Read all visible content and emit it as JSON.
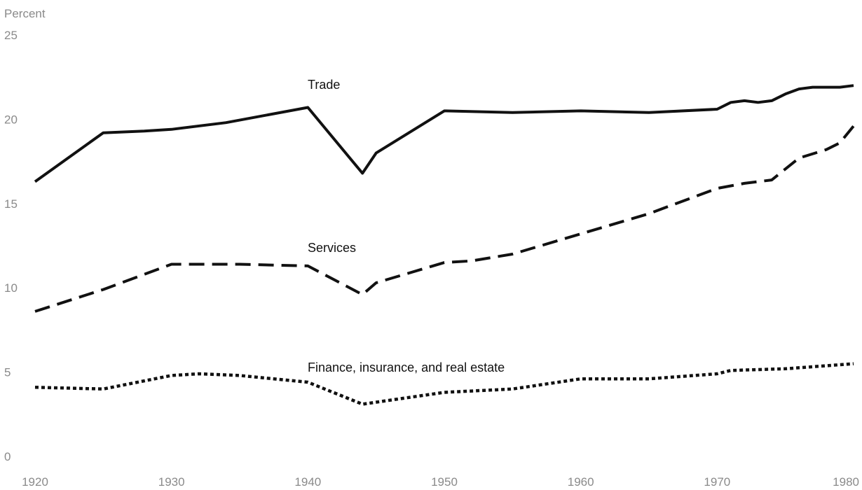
{
  "chart_data": {
    "type": "line",
    "title": "",
    "xlabel": "",
    "ylabel": "Percent",
    "xlim": [
      1920,
      1980
    ],
    "ylim": [
      0,
      25
    ],
    "x_ticks": [
      1920,
      1930,
      1940,
      1950,
      1960,
      1970,
      1980
    ],
    "x_tick_labels": [
      "1920",
      "1930",
      "1940",
      "1950",
      "1960",
      "1970",
      "1980"
    ],
    "y_ticks": [
      0,
      5,
      10,
      15,
      20,
      25
    ],
    "y_tick_labels": [
      "0",
      "5",
      "10",
      "15",
      "20",
      "25"
    ],
    "grid": false,
    "legend": "none",
    "series": [
      {
        "name": "Trade",
        "style": "solid",
        "color": "#111111",
        "x": [
          1920,
          1925,
          1928,
          1930,
          1934,
          1940,
          1944,
          1945,
          1950,
          1955,
          1960,
          1965,
          1970,
          1971,
          1972,
          1973,
          1974,
          1975,
          1976,
          1977,
          1978,
          1979,
          1980
        ],
        "y": [
          16.3,
          19.2,
          19.3,
          19.4,
          19.8,
          20.7,
          16.8,
          18.0,
          20.5,
          20.4,
          20.5,
          20.4,
          20.6,
          21.0,
          21.1,
          21.0,
          21.1,
          21.5,
          21.8,
          21.9,
          21.9,
          21.9,
          22.0
        ]
      },
      {
        "name": "Services",
        "style": "dashed",
        "color": "#111111",
        "x": [
          1920,
          1925,
          1930,
          1935,
          1940,
          1944,
          1945,
          1950,
          1952,
          1955,
          1960,
          1965,
          1970,
          1972,
          1974,
          1976,
          1978,
          1979,
          1980
        ],
        "y": [
          8.6,
          9.9,
          11.4,
          11.4,
          11.3,
          9.6,
          10.3,
          11.5,
          11.6,
          12.0,
          13.2,
          14.4,
          15.9,
          16.2,
          16.4,
          17.7,
          18.2,
          18.6,
          19.6
        ]
      },
      {
        "name": "Finance, insurance, and real estate",
        "style": "dotted",
        "color": "#111111",
        "x": [
          1920,
          1925,
          1930,
          1932,
          1935,
          1940,
          1944,
          1950,
          1955,
          1960,
          1965,
          1970,
          1971,
          1975,
          1980
        ],
        "y": [
          4.1,
          4.0,
          4.8,
          4.9,
          4.8,
          4.4,
          3.1,
          3.8,
          4.0,
          4.6,
          4.6,
          4.9,
          5.1,
          5.2,
          5.5
        ]
      }
    ]
  }
}
